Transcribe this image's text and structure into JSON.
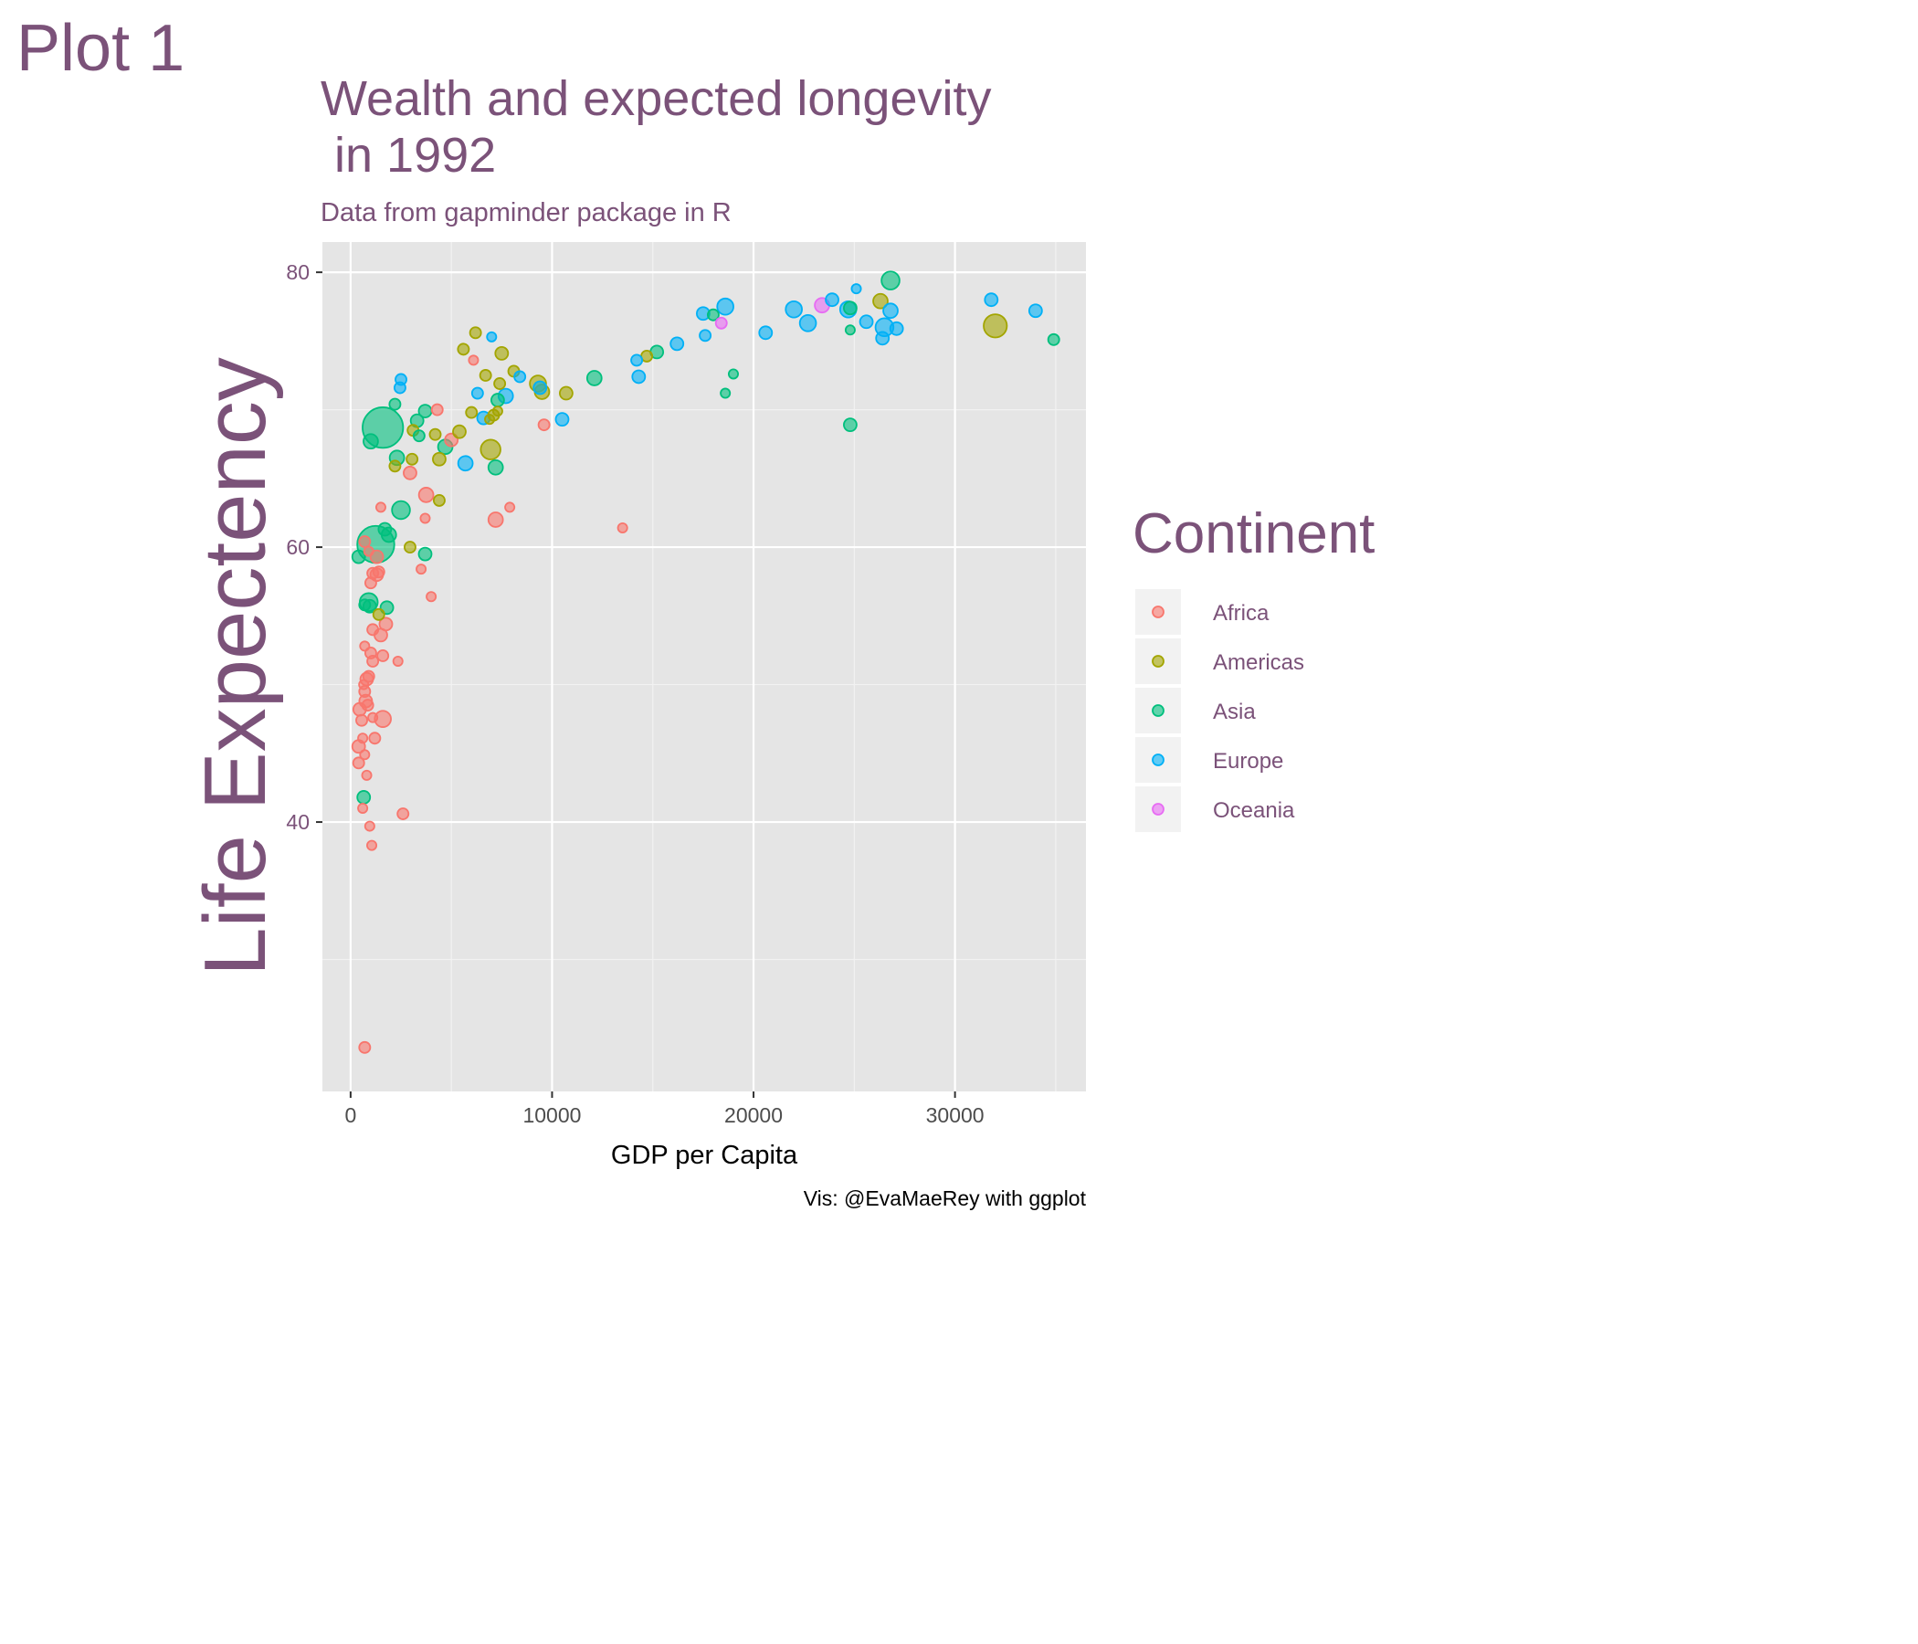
{
  "plot_tag": "Plot 1",
  "colors": {
    "text": "#7B5279",
    "panel": "#E5E5E5",
    "grid_major": "#FFFFFF",
    "grid_minor": "#F2F2F2",
    "Africa": "#F8766D",
    "Americas": "#A3A500",
    "Asia": "#00BF7D",
    "Europe": "#00B0F6",
    "Oceania": "#E76BF3"
  },
  "chart_data": {
    "type": "scatter",
    "title": "Wealth and expected longevity\n in 1992",
    "subtitle": "Data from gapminder package in R",
    "xlabel": "GDP per Capita",
    "ylabel": "Life Expectency",
    "caption": "Vis: @EvaMaeRey with ggplot",
    "xlim": [
      -1400,
      36500
    ],
    "ylim": [
      20.4,
      82.2
    ],
    "x_ticks": [
      0,
      10000,
      20000,
      30000
    ],
    "x_tick_labels": [
      "0",
      "10000",
      "20000",
      "30000"
    ],
    "y_ticks": [
      40,
      60,
      80
    ],
    "y_tick_labels": [
      "40",
      "60",
      "80"
    ],
    "grid": true,
    "legend": {
      "title": "Continent",
      "position": "right",
      "entries": [
        "Africa",
        "Americas",
        "Asia",
        "Europe",
        "Oceania"
      ]
    },
    "size_encoding": "population",
    "series": [
      {
        "name": "Africa",
        "points": [
          [
            400,
            45.5,
            2
          ],
          [
            400,
            44.3,
            1.5
          ],
          [
            600,
            46.1,
            1
          ],
          [
            700,
            44.9,
            1
          ],
          [
            800,
            43.4,
            1
          ],
          [
            600,
            41.0,
            1
          ],
          [
            950,
            39.7,
            1
          ],
          [
            1050,
            38.3,
            1
          ],
          [
            2600,
            40.6,
            1.5
          ],
          [
            700,
            23.6,
            1.5
          ],
          [
            450,
            48.2,
            2
          ],
          [
            550,
            47.4,
            1.5
          ],
          [
            750,
            48.8,
            2
          ],
          [
            850,
            48.5,
            1.5
          ],
          [
            700,
            49.5,
            1.5
          ],
          [
            800,
            50.4,
            2
          ],
          [
            900,
            50.6,
            1.5
          ],
          [
            650,
            50.0,
            1
          ],
          [
            1100,
            47.6,
            1
          ],
          [
            1200,
            46.1,
            1.5
          ],
          [
            1600,
            47.5,
            3
          ],
          [
            700,
            52.8,
            1
          ],
          [
            1000,
            52.3,
            1.5
          ],
          [
            1100,
            51.7,
            1.5
          ],
          [
            1600,
            52.1,
            1.5
          ],
          [
            2350,
            51.7,
            1
          ],
          [
            1100,
            54.0,
            1.5
          ],
          [
            1500,
            53.6,
            2
          ],
          [
            1750,
            54.4,
            2
          ],
          [
            1000,
            57.4,
            1.5
          ],
          [
            1300,
            58.0,
            2
          ],
          [
            1400,
            58.2,
            1.5
          ],
          [
            1100,
            58.1,
            1.5
          ],
          [
            900,
            59.7,
            1
          ],
          [
            1300,
            59.3,
            2
          ],
          [
            700,
            60.4,
            1.5
          ],
          [
            1500,
            62.9,
            1
          ],
          [
            3500,
            58.4,
            1
          ],
          [
            4000,
            56.4,
            1
          ],
          [
            3700,
            62.1,
            1
          ],
          [
            3750,
            63.8,
            2.5
          ],
          [
            2950,
            65.4,
            2
          ],
          [
            5000,
            67.8,
            2
          ],
          [
            4300,
            70.0,
            1.5
          ],
          [
            6100,
            73.6,
            1
          ],
          [
            9600,
            68.9,
            1.5
          ],
          [
            7200,
            62.0,
            2.5
          ],
          [
            7900,
            62.9,
            1
          ],
          [
            13500,
            61.4,
            1
          ]
        ]
      },
      {
        "name": "Americas",
        "points": [
          [
            6200,
            75.6,
            1.5
          ],
          [
            5600,
            74.4,
            1.5
          ],
          [
            6700,
            72.5,
            1.5
          ],
          [
            8100,
            72.8,
            1.5
          ],
          [
            7500,
            74.1,
            2
          ],
          [
            7400,
            71.9,
            1.5
          ],
          [
            7300,
            69.9,
            1
          ],
          [
            7100,
            69.6,
            1.5
          ],
          [
            6900,
            69.3,
            1
          ],
          [
            6000,
            69.8,
            1.5
          ],
          [
            5400,
            68.4,
            2
          ],
          [
            4200,
            68.2,
            1.5
          ],
          [
            3100,
            68.5,
            1.5
          ],
          [
            2200,
            65.9,
            1.5
          ],
          [
            3050,
            66.4,
            1.5
          ],
          [
            4400,
            66.4,
            2
          ],
          [
            4400,
            63.4,
            1.5
          ],
          [
            2950,
            60.0,
            1.5
          ],
          [
            1400,
            55.1,
            1.5
          ],
          [
            6950,
            67.1,
            4
          ],
          [
            9300,
            71.9,
            3
          ],
          [
            9500,
            71.3,
            2.5
          ],
          [
            10700,
            71.2,
            2
          ],
          [
            14700,
            73.9,
            1.5
          ],
          [
            26300,
            77.9,
            2.5
          ],
          [
            32000,
            76.1,
            5
          ]
        ]
      },
      {
        "name": "Asia",
        "points": [
          [
            1600,
            68.7,
            10
          ],
          [
            1250,
            60.2,
            9
          ],
          [
            2200,
            70.4,
            1.5
          ],
          [
            3700,
            69.9,
            2
          ],
          [
            3300,
            69.2,
            2
          ],
          [
            3400,
            68.1,
            1.5
          ],
          [
            1000,
            67.7,
            2.5
          ],
          [
            2300,
            66.5,
            2.5
          ],
          [
            4700,
            67.3,
            2.5
          ],
          [
            2500,
            62.7,
            3.5
          ],
          [
            1700,
            61.3,
            2
          ],
          [
            1900,
            60.9,
            2.5
          ],
          [
            400,
            59.3,
            2
          ],
          [
            3700,
            59.5,
            2
          ],
          [
            900,
            56.0,
            3.5
          ],
          [
            1800,
            55.6,
            2
          ],
          [
            950,
            55.7,
            2
          ],
          [
            700,
            55.8,
            1.5
          ],
          [
            650,
            41.8,
            2
          ],
          [
            7300,
            70.7,
            2
          ],
          [
            7200,
            65.8,
            2.5
          ],
          [
            12100,
            72.3,
            2.5
          ],
          [
            15200,
            74.2,
            2
          ],
          [
            18000,
            76.9,
            1.5
          ],
          [
            19000,
            72.6,
            1
          ],
          [
            18600,
            71.2,
            1
          ],
          [
            24800,
            75.8,
            1
          ],
          [
            24800,
            68.9,
            2
          ],
          [
            24800,
            77.4,
            2
          ],
          [
            26800,
            79.4,
            3.5
          ],
          [
            34900,
            75.1,
            1.5
          ]
        ]
      },
      {
        "name": "Europe",
        "points": [
          [
            2500,
            72.2,
            1.5
          ],
          [
            2450,
            71.6,
            1.5
          ],
          [
            6300,
            71.2,
            1.5
          ],
          [
            7000,
            75.3,
            1
          ],
          [
            6600,
            69.4,
            2
          ],
          [
            5700,
            66.1,
            2.5
          ],
          [
            7700,
            71.0,
            2.5
          ],
          [
            8400,
            72.4,
            1.5
          ],
          [
            9400,
            71.6,
            2
          ],
          [
            10500,
            69.3,
            2
          ],
          [
            14300,
            72.4,
            2
          ],
          [
            14200,
            73.6,
            1.5
          ],
          [
            16200,
            74.8,
            2
          ],
          [
            17600,
            75.4,
            1.5
          ],
          [
            17500,
            77.0,
            2
          ],
          [
            18600,
            77.5,
            3
          ],
          [
            20600,
            75.6,
            2
          ],
          [
            22000,
            77.3,
            3
          ],
          [
            22700,
            76.3,
            3
          ],
          [
            23900,
            78.0,
            2
          ],
          [
            24700,
            77.3,
            3
          ],
          [
            25100,
            78.8,
            1
          ],
          [
            25600,
            76.4,
            2
          ],
          [
            26400,
            75.2,
            2
          ],
          [
            26500,
            76.0,
            3.5
          ],
          [
            26800,
            77.2,
            2.5
          ],
          [
            27100,
            75.9,
            2
          ],
          [
            31800,
            78.0,
            2
          ],
          [
            34000,
            77.2,
            2
          ]
        ]
      },
      {
        "name": "Oceania",
        "points": [
          [
            18400,
            76.3,
            1.5
          ],
          [
            23400,
            77.6,
            2.5
          ]
        ]
      }
    ]
  }
}
